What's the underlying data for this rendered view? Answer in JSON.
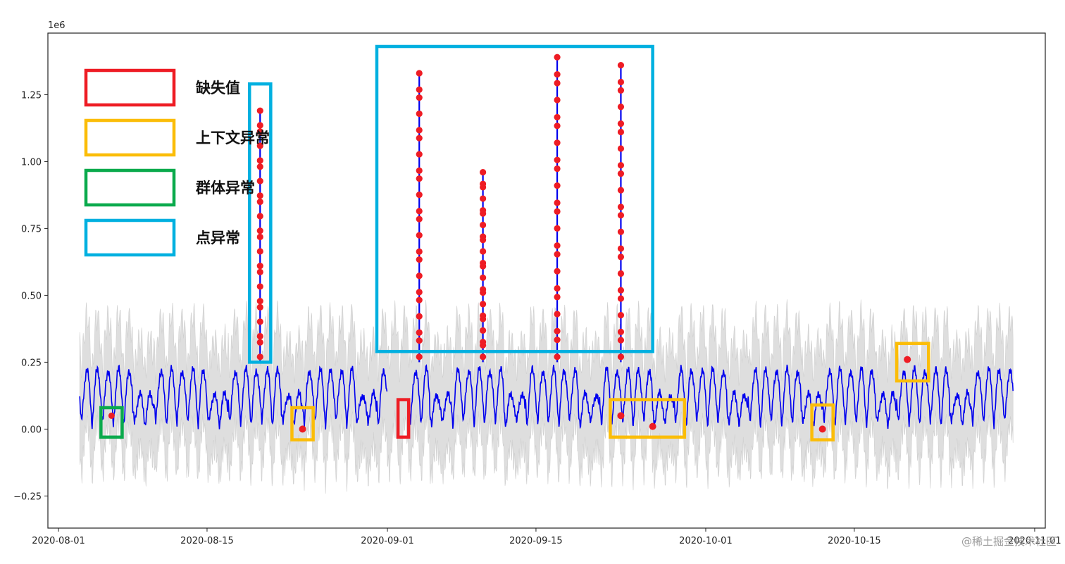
{
  "chart_data": {
    "type": "line",
    "title": "",
    "xlabel": "",
    "ylabel": "",
    "y_offset_label": "1e6",
    "x_ticks": [
      "2020-08-01",
      "2020-08-15",
      "2020-09-01",
      "2020-09-15",
      "2020-10-01",
      "2020-10-15",
      "2020-11-01"
    ],
    "y_ticks": [
      "−0.25",
      "0.00",
      "0.25",
      "0.50",
      "0.75",
      "1.00",
      "1.25"
    ],
    "y_tick_values": [
      -0.25,
      0.0,
      0.25,
      0.5,
      0.75,
      1.0,
      1.25
    ],
    "xlim": [
      "2020-07-31",
      "2020-11-02"
    ],
    "ylim": [
      -0.37,
      1.48
    ],
    "series_color": "#0000ee",
    "band_color": "#d3d3d3",
    "anomaly_marker_color": "#ee1c24",
    "data_start": "2020-08-03",
    "data_end": "2020-10-30",
    "missing_gap": [
      "2020-09-01",
      "2020-09-03"
    ],
    "normal_range": {
      "low": 0.02,
      "high": 0.25
    },
    "point_anomalies": [
      {
        "x": "2020-08-20",
        "y_max": 1.19
      },
      {
        "x": "2020-09-04",
        "y_max": 1.33
      },
      {
        "x": "2020-09-10",
        "y_max": 0.96
      },
      {
        "x": "2020-09-17",
        "y_max": 1.39
      },
      {
        "x": "2020-09-23",
        "y_max": 1.36
      }
    ],
    "contextual_anomalies": [
      {
        "x": "2020-08-24",
        "y": 0.0
      },
      {
        "x": "2020-09-23",
        "y": 0.05
      },
      {
        "x": "2020-09-26",
        "y": 0.01
      },
      {
        "x": "2020-10-12",
        "y": 0.0
      },
      {
        "x": "2020-10-20",
        "y": 0.26
      }
    ],
    "collective_anomaly": {
      "x": "2020-08-06",
      "y": 0.05
    },
    "legend": [
      {
        "label": "缺失值",
        "color": "#ee1c24"
      },
      {
        "label": "上下文异常",
        "color": "#fbbd08"
      },
      {
        "label": "群体异常",
        "color": "#0aaa4c"
      },
      {
        "label": "点异常",
        "color": "#00b0e0"
      }
    ],
    "legend_placement": "top-left",
    "highlight_boxes": [
      {
        "kind": "point",
        "color": "#00b0e0",
        "x_range": [
          "2020-08-19",
          "2020-08-21"
        ],
        "y_range": [
          0.25,
          1.29
        ]
      },
      {
        "kind": "point",
        "color": "#00b0e0",
        "x_range": [
          "2020-08-31",
          "2020-09-26"
        ],
        "y_range": [
          0.29,
          1.43
        ]
      },
      {
        "kind": "missing",
        "color": "#ee1c24",
        "x_range": [
          "2020-09-02",
          "2020-09-03"
        ],
        "y_range": [
          -0.03,
          0.11
        ]
      },
      {
        "kind": "collective",
        "color": "#0aaa4c",
        "x_range": [
          "2020-08-05",
          "2020-08-07"
        ],
        "y_range": [
          -0.03,
          0.08
        ]
      },
      {
        "kind": "contextual",
        "color": "#fbbd08",
        "x_range": [
          "2020-08-23",
          "2020-08-25"
        ],
        "y_range": [
          -0.04,
          0.08
        ]
      },
      {
        "kind": "contextual",
        "color": "#fbbd08",
        "x_range": [
          "2020-09-22",
          "2020-09-29"
        ],
        "y_range": [
          -0.03,
          0.11
        ]
      },
      {
        "kind": "contextual",
        "color": "#fbbd08",
        "x_range": [
          "2020-10-11",
          "2020-10-13"
        ],
        "y_range": [
          -0.04,
          0.09
        ]
      },
      {
        "kind": "contextual",
        "color": "#fbbd08",
        "x_range": [
          "2020-10-19",
          "2020-10-22"
        ],
        "y_range": [
          0.18,
          0.32
        ]
      }
    ]
  },
  "watermark": "@稀土掘金技术社区"
}
